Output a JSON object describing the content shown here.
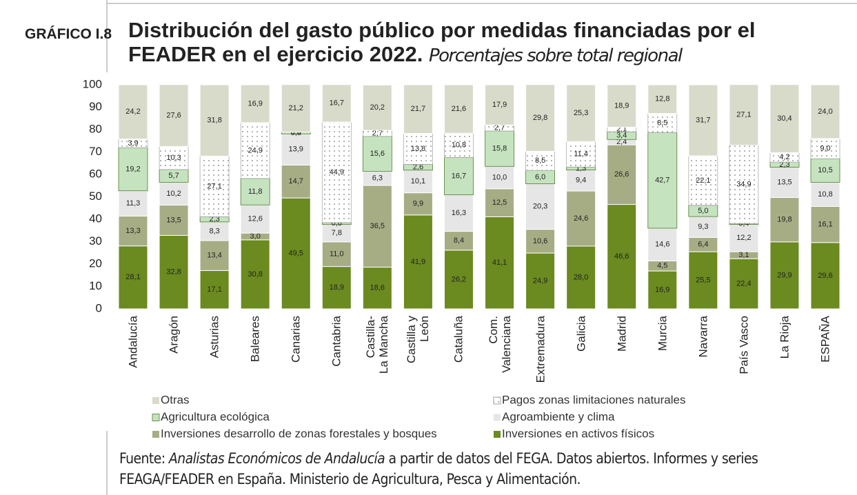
{
  "label": "GRÁFICO I.8",
  "chart_data": {
    "type": "stacked_bar",
    "title": "Distribución del gasto público por medidas financiadas por el FEADER en el ejercicio 2022.",
    "subtitle": "Porcentajes sobre total regional",
    "categories": [
      "Andalucía",
      "Aragón",
      "Asturias",
      "Baleares",
      "Canarias",
      "Cantabria",
      "Castilla-\nLa Mancha",
      "Castilla y\nLeón",
      "Cataluña",
      "Com.\nValenciana",
      "Extremadura",
      "Galicia",
      "Madrid",
      "Murcia",
      "Navarra",
      "País Vasco",
      "La Rioja",
      "ESPAÑA"
    ],
    "ylim": [
      0,
      100
    ],
    "yticks": [
      0,
      10,
      20,
      30,
      40,
      50,
      60,
      70,
      80,
      90,
      100
    ],
    "series": [
      {
        "name": "Inversiones en activos físicos",
        "color": "#6b8a1f",
        "values": [
          28.1,
          32.8,
          17.1,
          30.8,
          49.5,
          18.9,
          18.6,
          41.9,
          26.2,
          41.1,
          24.9,
          28.0,
          46.6,
          16.9,
          25.5,
          22.4,
          29.9,
          29.6
        ],
        "value_labels": [
          "28,1",
          "32,8",
          "17,1",
          "30,8",
          "49,5",
          "18,9",
          "18,6",
          "41,9",
          "26,2",
          "41,1",
          "24,9",
          "28,0",
          "46,6",
          "16,9",
          "25,5",
          "22,4",
          "29,9",
          "29,6"
        ]
      },
      {
        "name": "Inversiones desarrollo de zonas forestales y bosques",
        "color": "#a6ad85",
        "values": [
          13.3,
          13.5,
          13.4,
          3.0,
          14.7,
          11.0,
          36.5,
          9.9,
          8.4,
          12.5,
          10.6,
          24.6,
          26.6,
          4.5,
          6.4,
          3.1,
          19.8,
          16.1
        ],
        "value_labels": [
          "13,3",
          "13,5",
          "13,4",
          "3,0",
          "14,7",
          "11,0",
          "36,5",
          "9,9",
          "8,4",
          "12,5",
          "10,6",
          "24,6",
          "26,6",
          "4,5",
          "6,4",
          "3,1",
          "19,8",
          "16,1"
        ]
      },
      {
        "name": "Agroambiente y clima",
        "color": "#e6e6e6",
        "values": [
          11.3,
          10.2,
          8.3,
          12.6,
          13.9,
          7.8,
          6.3,
          10.1,
          16.3,
          10.0,
          20.3,
          9.4,
          2.4,
          14.6,
          9.3,
          12.2,
          13.5,
          10.8
        ],
        "value_labels": [
          "11,3",
          "10,2",
          "8,3",
          "12,6",
          "13,9",
          "7,8",
          "6,3",
          "10,1",
          "16,3",
          "10,0",
          "20,3",
          "9,4",
          "2,4",
          "14,6",
          "9,3",
          "12,2",
          "13,5",
          "10,8"
        ]
      },
      {
        "name": "Agricultura ecológica",
        "color": "#c6e3c0",
        "values": [
          19.2,
          5.7,
          2.3,
          11.8,
          0.8,
          0.8,
          15.6,
          2.6,
          16.7,
          15.8,
          6.0,
          1.3,
          3.4,
          42.7,
          5.0,
          0.4,
          2.3,
          10.5
        ],
        "value_labels": [
          "19,2",
          "5,7",
          "2,3",
          "11,8",
          "0,8",
          "0,8",
          "15,6",
          "2,6",
          "16,7",
          "15,8",
          "6,0",
          "1,3",
          "3,4",
          "42,7",
          "5,0",
          "0,4",
          "2,3",
          "10,5"
        ]
      },
      {
        "name": "Pagos zonas limitaciones naturales",
        "color": "#ffffff",
        "hatch": "dots",
        "values": [
          3.9,
          10.3,
          27.1,
          24.9,
          0.0,
          44.9,
          2.7,
          13.8,
          10.8,
          2.7,
          8.5,
          11.4,
          2.1,
          8.5,
          22.1,
          34.9,
          4.2,
          9.0
        ],
        "value_labels": [
          "3,9",
          "10,3",
          "27,1",
          "24,9",
          "0,0",
          "44,9",
          "2,7",
          "13,8",
          "10,8",
          "2,7",
          "8,5",
          "11,4",
          "2,1",
          "8,5",
          "22,1",
          "34,9",
          "4,2",
          "9,0"
        ]
      },
      {
        "name": "Otras",
        "color": "#d9dbca",
        "values": [
          24.2,
          27.6,
          31.8,
          16.9,
          21.2,
          16.7,
          20.2,
          21.7,
          21.6,
          17.9,
          29.8,
          25.3,
          18.9,
          12.8,
          31.7,
          27.1,
          30.4,
          24.0
        ],
        "value_labels": [
          "24,2",
          "27,6",
          "31,8",
          "16,9",
          "21,2",
          "16,7",
          "20,2",
          "21,7",
          "21,6",
          "17,9",
          "29,8",
          "25,3",
          "18,9",
          "12,8",
          "31,7",
          "27,1",
          "30,4",
          "24,0"
        ]
      }
    ],
    "legend_order": [
      5,
      4,
      3,
      2,
      1,
      0
    ]
  },
  "source": {
    "prefix": "Fuente: ",
    "italic": "Analistas Económicos de Andalucía",
    "text": " a partir de datos del FEGA. Datos abiertos. Informes y series FEAGA/FEADER en España. Ministerio de Agricultura, Pesca y Alimentación."
  }
}
